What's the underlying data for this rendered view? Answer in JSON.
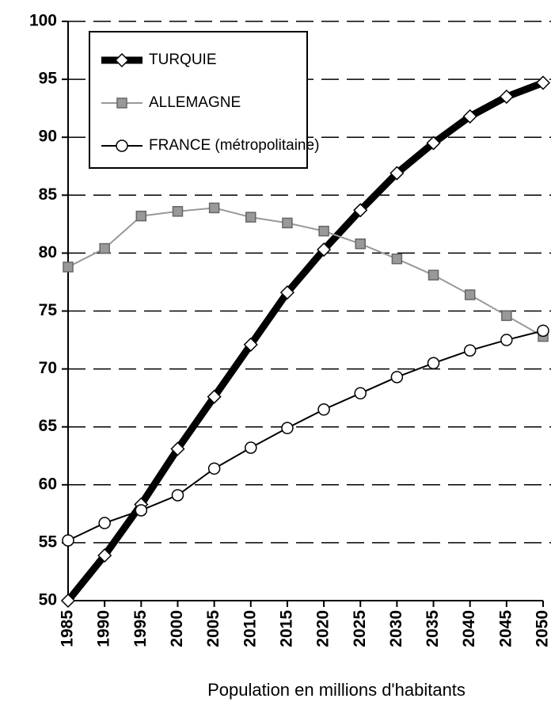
{
  "chart_data": {
    "type": "line",
    "x_label": "Population en millions d'habitants",
    "x": [
      1985,
      1990,
      1995,
      2000,
      2005,
      2010,
      2015,
      2020,
      2025,
      2030,
      2035,
      2040,
      2045,
      2050
    ],
    "xlim": [
      1985,
      2050
    ],
    "xticks": [
      1985,
      1990,
      1995,
      2000,
      2005,
      2010,
      2015,
      2020,
      2025,
      2030,
      2035,
      2040,
      2045,
      2050
    ],
    "ylim": [
      50,
      100
    ],
    "yticks": [
      50,
      55,
      60,
      65,
      70,
      75,
      80,
      85,
      90,
      95,
      100
    ],
    "grid": true,
    "legend": "upper left",
    "series": [
      {
        "name": "TURQUIE",
        "color": "#000000",
        "marker": "diamond",
        "values": [
          50,
          53.9,
          58.3,
          63.1,
          67.6,
          72.1,
          76.6,
          80.3,
          83.7,
          86.9,
          89.5,
          91.8,
          93.5,
          94.7
        ]
      },
      {
        "name": "ALLEMAGNE",
        "color": "#999999",
        "marker": "square",
        "values": [
          78.8,
          80.4,
          83.2,
          83.6,
          83.9,
          83.1,
          82.6,
          81.9,
          80.8,
          79.5,
          78.1,
          76.4,
          74.6,
          72.8
        ]
      },
      {
        "name": "FRANCE (métropolitaine)",
        "color": "#000000",
        "marker": "circle",
        "values": [
          55.2,
          56.7,
          57.8,
          59.1,
          61.4,
          63.2,
          64.9,
          66.5,
          67.9,
          69.3,
          70.5,
          71.6,
          72.5,
          73.3
        ]
      }
    ]
  }
}
